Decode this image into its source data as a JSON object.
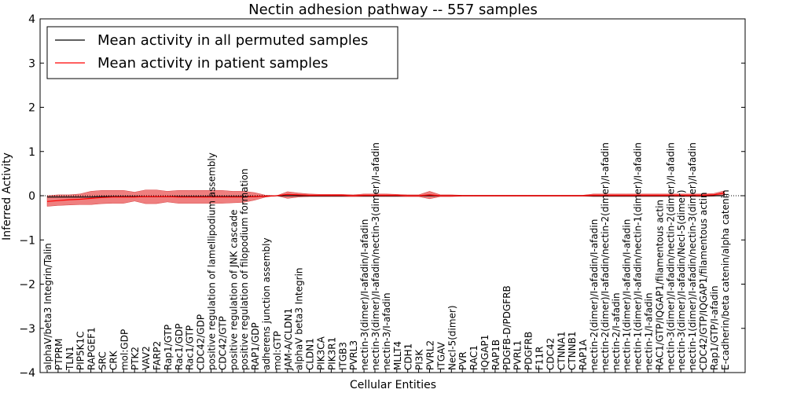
{
  "chart_data": {
    "type": "line",
    "title": "Nectin adhesion pathway -- 557 samples",
    "xlabel": "Cellular Entities",
    "ylabel": "Inferred Activity",
    "ylim": [
      -4,
      4
    ],
    "yticks": [
      -4,
      -3,
      -2,
      -1,
      0,
      1,
      2,
      3,
      4
    ],
    "ytick_labels": [
      "−4",
      "−3",
      "−2",
      "−1",
      "0",
      "1",
      "2",
      "3",
      "4"
    ],
    "grid": false,
    "legend_position": "upper-left",
    "categories": [
      "alphaV/beta3 Integrin/Talin",
      "PTPRM",
      "TLN1",
      "PIP5K1C",
      "RAPGEF1",
      "SRC",
      "CRK",
      "mol:GDP",
      "PTK2",
      "VAV2",
      "FARP2",
      "Rap1/GTP",
      "Rac1/GDP",
      "Rac1/GTP",
      "CDC42/GDP",
      "positive regulation of lamellipodium assembly",
      "CDC42/GTP",
      "positive regulation of JNK cascade",
      "positive regulation of filopodium formation",
      "RAP1/GDP",
      "adherens junction assembly",
      "mol:GTP",
      "JAM-A/CLDN1",
      "alphaV beta3 Integrin",
      "CLDN1",
      "PIK3CA",
      "PIK3R1",
      "ITGB3",
      "PVRL3",
      "nectin-3(dimer)/I-afadin/I-afadin",
      "nectin-3(dimer)/I-afadin/nectin-3(dimer)/I-afadin",
      "nectin-3/I-afadin",
      "MLLT4",
      "CDH1",
      "PI3K",
      "PVRL2",
      "ITGAV",
      "Necl-5(dimer)",
      "PVR",
      "RAC1",
      "IQGAP1",
      "RAP1B",
      "PDGFB-D/PDGFRB",
      "PVRL1",
      "PDGFRB",
      "F11R",
      "CDC42",
      "CTNNA1",
      "CTNNB1",
      "RAP1A",
      "nectin-2(dimer)/I-afadin/I-afadin",
      "nectin-2(dimer)/I-afadin/nectin-2(dimer)/I-afadin",
      "nectin-2/I-afadin",
      "nectin-1(dimer)/I-afadin/I-afadin",
      "nectin-1(dimer)/I-afadin/nectin-1(dimer)/I-afadin",
      "nectin-1/I-afadin",
      "RAC1/GTP/IQGAP1/filamentous actin",
      "nectin-3(dimer)/I-afadin/nectin-2(dimer)/I-afadin",
      "nectin-3(dimer)/I-afadin/Necl-5(dimer)",
      "nectin-1(dimer)/I-afadin/nectin-3(dimer)/I-afadin",
      "CDC42/GTP/IQGAP1/filamentous actin",
      "Rap1/GTP/I-afadin",
      "E-cadherin/beta catenin/alpha catenin"
    ],
    "series": [
      {
        "name": "Mean activity in all permuted samples",
        "color": "#000000",
        "values": [
          -0.03,
          -0.03,
          -0.03,
          -0.03,
          -0.03,
          -0.02,
          -0.02,
          -0.02,
          -0.02,
          -0.02,
          -0.02,
          -0.02,
          -0.02,
          -0.02,
          -0.02,
          -0.02,
          -0.02,
          -0.02,
          -0.02,
          -0.02,
          -0.01,
          0.0,
          0.0,
          0.0,
          0.0,
          0.0,
          0.0,
          0.0,
          0.0,
          0.0,
          0.0,
          0.0,
          0.0,
          0.0,
          0.0,
          0.0,
          0.0,
          0.0,
          0.0,
          0.0,
          0.0,
          0.0,
          0.0,
          0.0,
          0.0,
          0.0,
          0.0,
          0.0,
          0.0,
          0.0,
          0.0,
          0.0,
          0.0,
          0.0,
          0.0,
          0.0,
          0.0,
          0.0,
          0.0,
          0.0,
          0.0,
          0.0,
          0.0
        ]
      },
      {
        "name": "Mean activity in patient samples",
        "color": "#ff0000",
        "values": [
          -0.13,
          -0.11,
          -0.09,
          -0.08,
          -0.06,
          -0.04,
          -0.03,
          -0.03,
          -0.03,
          -0.02,
          -0.02,
          -0.02,
          -0.03,
          -0.03,
          -0.03,
          -0.03,
          -0.03,
          -0.03,
          -0.03,
          -0.02,
          -0.01,
          0.0,
          0.03,
          0.02,
          0.01,
          0.01,
          0.01,
          0.01,
          0.0,
          0.01,
          0.01,
          0.01,
          0.01,
          0.0,
          0.0,
          0.02,
          0.0,
          0.0,
          0.0,
          0.0,
          0.0,
          0.0,
          0.0,
          0.0,
          0.0,
          0.0,
          0.0,
          0.0,
          0.0,
          0.0,
          0.01,
          0.01,
          0.01,
          0.01,
          0.01,
          0.01,
          0.01,
          0.01,
          0.01,
          0.01,
          0.01,
          0.02,
          0.06
        ]
      }
    ],
    "band": {
      "color": "#ef7f7f",
      "upper": [
        0.0,
        0.02,
        0.02,
        0.04,
        0.1,
        0.12,
        0.12,
        0.12,
        0.08,
        0.13,
        0.13,
        0.1,
        0.12,
        0.12,
        0.12,
        0.12,
        0.12,
        0.1,
        0.1,
        0.07,
        0.01,
        0.0,
        0.09,
        0.06,
        0.04,
        0.03,
        0.03,
        0.03,
        0.02,
        0.04,
        0.04,
        0.04,
        0.03,
        0.02,
        0.02,
        0.1,
        0.02,
        0.02,
        0.01,
        0.01,
        0.01,
        0.01,
        0.01,
        0.01,
        0.01,
        0.01,
        0.01,
        0.01,
        0.01,
        0.01,
        0.04,
        0.04,
        0.04,
        0.04,
        0.04,
        0.04,
        0.04,
        0.04,
        0.04,
        0.04,
        0.04,
        0.05,
        0.11
      ],
      "lower": [
        -0.24,
        -0.22,
        -0.21,
        -0.2,
        -0.2,
        -0.18,
        -0.17,
        -0.17,
        -0.12,
        -0.18,
        -0.18,
        -0.14,
        -0.17,
        -0.17,
        -0.17,
        -0.17,
        -0.17,
        -0.16,
        -0.15,
        -0.1,
        -0.03,
        0.0,
        -0.06,
        -0.03,
        -0.02,
        -0.02,
        -0.02,
        -0.02,
        -0.02,
        -0.02,
        -0.02,
        -0.02,
        -0.02,
        -0.02,
        -0.02,
        -0.07,
        -0.02,
        -0.02,
        -0.01,
        -0.01,
        -0.01,
        -0.01,
        -0.01,
        -0.01,
        -0.01,
        -0.01,
        -0.01,
        -0.01,
        -0.01,
        -0.01,
        -0.02,
        -0.02,
        -0.02,
        -0.02,
        -0.02,
        -0.02,
        -0.02,
        -0.02,
        -0.02,
        -0.02,
        -0.02,
        -0.01,
        0.01
      ]
    }
  }
}
